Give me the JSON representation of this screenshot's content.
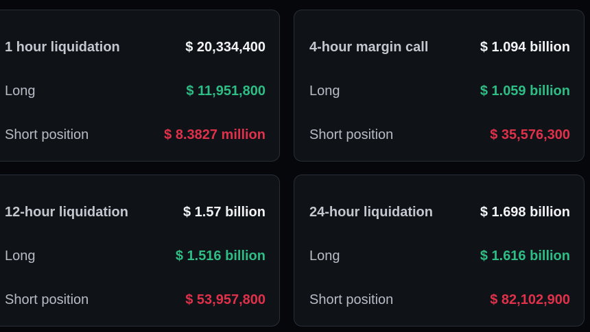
{
  "theme": {
    "page_bg": "#05070b",
    "card_bg": "#0f1217",
    "card_border": "#2a2f37",
    "label_color": "#b7bcc5",
    "title_color": "#c3c7ce",
    "total_color": "#f1f2f4",
    "long_color": "#2ebd85",
    "short_color": "#e0314b"
  },
  "cards": [
    {
      "title": "1 hour liquidation",
      "total": "$ 20,334,400",
      "rows": [
        {
          "label": "Long",
          "value": "$ 11,951,800",
          "type": "long"
        },
        {
          "label": "Short position",
          "value": "$ 8.3827 million",
          "type": "short"
        }
      ]
    },
    {
      "title": "4-hour margin call",
      "total": "$ 1.094 billion",
      "rows": [
        {
          "label": "Long",
          "value": "$ 1.059 billion",
          "type": "long"
        },
        {
          "label": "Short position",
          "value": "$ 35,576,300",
          "type": "short"
        }
      ]
    },
    {
      "title": "12-hour liquidation",
      "total": "$ 1.57 billion",
      "rows": [
        {
          "label": "Long",
          "value": "$ 1.516 billion",
          "type": "long"
        },
        {
          "label": "Short position",
          "value": "$ 53,957,800",
          "type": "short"
        }
      ]
    },
    {
      "title": "24-hour liquidation",
      "total": "$ 1.698 billion",
      "rows": [
        {
          "label": "Long",
          "value": "$ 1.616 billion",
          "type": "long"
        },
        {
          "label": "Short position",
          "value": "$ 82,102,900",
          "type": "short"
        }
      ]
    }
  ]
}
